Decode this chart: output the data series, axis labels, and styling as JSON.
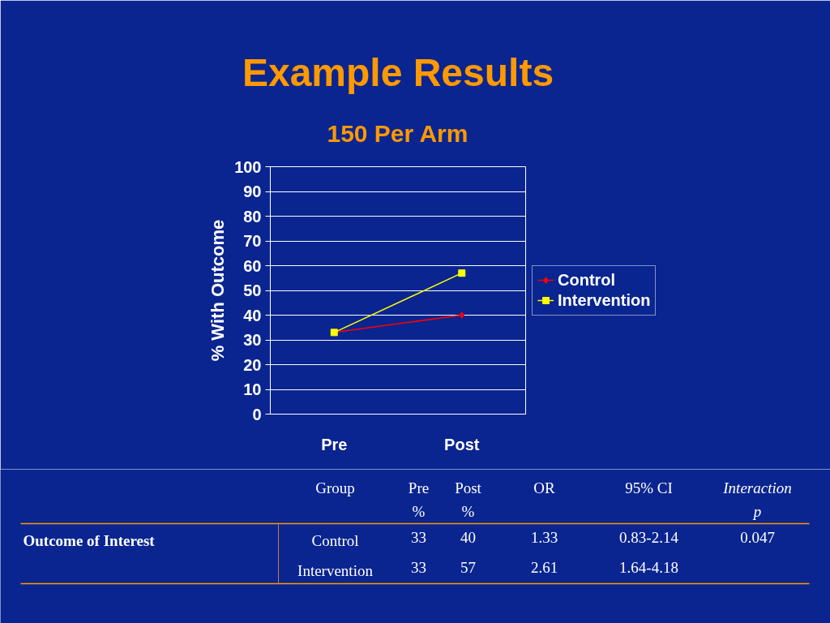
{
  "chart_data": {
    "type": "line",
    "title": "Example Results",
    "subtitle": "150 Per Arm",
    "ylabel": "% With Outcome",
    "categories": [
      "Pre",
      "Post"
    ],
    "series": [
      {
        "name": "Control",
        "color": "#ff0000",
        "marker": "diamond",
        "values": [
          33,
          40
        ]
      },
      {
        "name": "Intervention",
        "color": "#ffff00",
        "marker": "square",
        "values": [
          33,
          57
        ]
      }
    ],
    "ylim": [
      0,
      100
    ],
    "yticks": [
      0,
      10,
      20,
      30,
      40,
      50,
      60,
      70,
      80,
      90,
      100
    ],
    "grid": "y",
    "legend": "right",
    "annotations": [
      "Group",
      "Pre\n%",
      "Post\n%",
      "OR",
      "95% CI",
      "Interaction\np",
      "Outcome of Interest",
      "Control",
      "33",
      "40",
      "1.33",
      "0.83-2.14",
      "0.047",
      "Intervention",
      "33",
      "57",
      "2.61",
      "1.64-4.18"
    ]
  }
}
